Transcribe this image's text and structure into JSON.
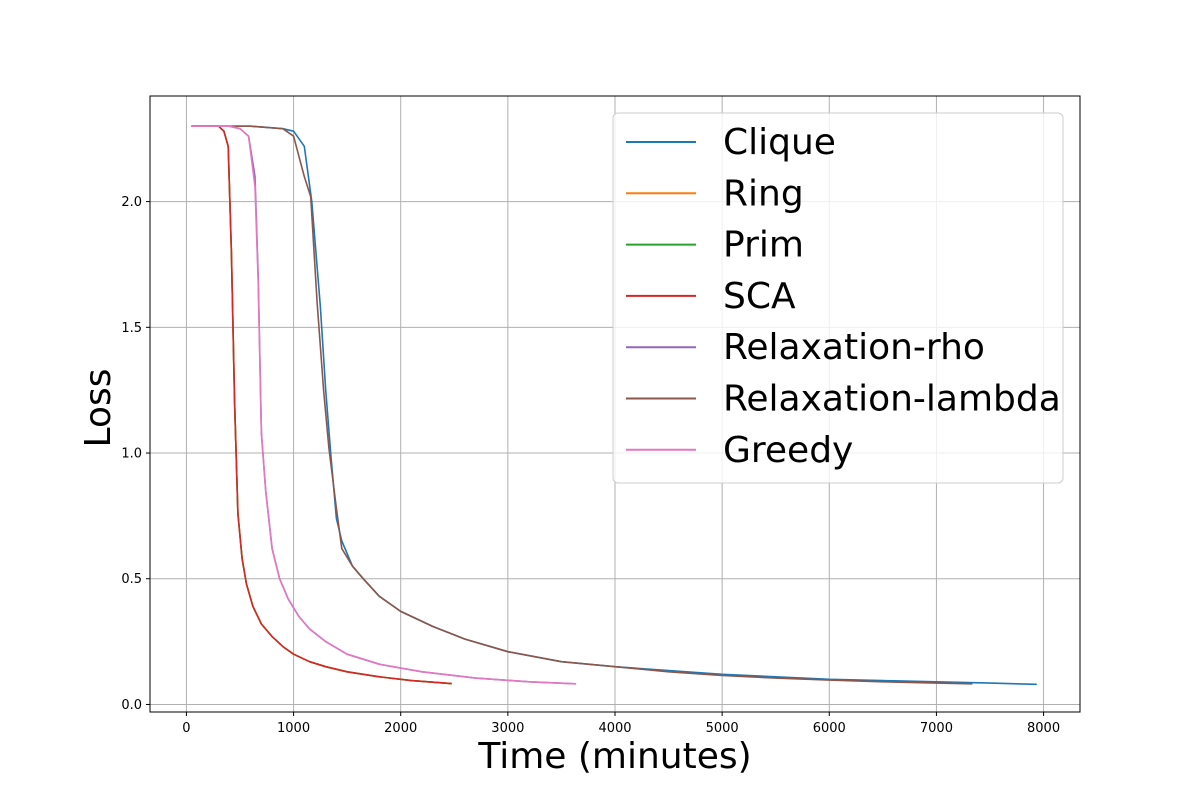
{
  "chart_data": {
    "type": "line",
    "title": "",
    "xlabel": "Time (minutes)",
    "ylabel": "Loss",
    "xlim": [
      -340,
      8340
    ],
    "ylim": [
      -0.03,
      2.42
    ],
    "xticks": [
      0,
      1000,
      2000,
      3000,
      4000,
      5000,
      6000,
      7000,
      8000
    ],
    "yticks": [
      0.0,
      0.5,
      1.0,
      1.5,
      2.0
    ],
    "xtick_labels": [
      "0",
      "1000",
      "2000",
      "3000",
      "4000",
      "5000",
      "6000",
      "7000",
      "8000"
    ],
    "ytick_labels": [
      "0.0",
      "0.5",
      "1.0",
      "1.5",
      "2.0"
    ],
    "grid": true,
    "legend_position": "top-right",
    "series": [
      {
        "name": "Clique",
        "color": "#1f77b4",
        "x": [
          50,
          300,
          600,
          900,
          1000,
          1100,
          1170,
          1250,
          1300,
          1350,
          1400,
          1450,
          1550,
          1650,
          1800,
          2000,
          2300,
          2600,
          3000,
          3500,
          4000,
          4500,
          5000,
          5500,
          6000,
          6500,
          7000,
          7500,
          7930
        ],
        "y": [
          2.3,
          2.3,
          2.3,
          2.29,
          2.28,
          2.22,
          2.0,
          1.58,
          1.25,
          0.98,
          0.74,
          0.65,
          0.55,
          0.5,
          0.43,
          0.37,
          0.31,
          0.26,
          0.21,
          0.17,
          0.15,
          0.135,
          0.12,
          0.11,
          0.1,
          0.095,
          0.09,
          0.085,
          0.08
        ]
      },
      {
        "name": "Ring",
        "color": "#ff7f0e",
        "x": [
          50,
          300,
          350,
          390,
          420,
          450,
          480,
          520,
          560,
          620,
          700,
          800,
          900,
          1000,
          1150,
          1300,
          1500,
          1800,
          2100,
          2470
        ],
        "y": [
          2.3,
          2.3,
          2.28,
          2.22,
          1.8,
          1.2,
          0.76,
          0.58,
          0.48,
          0.39,
          0.32,
          0.27,
          0.23,
          0.2,
          0.17,
          0.15,
          0.13,
          0.11,
          0.095,
          0.083
        ]
      },
      {
        "name": "Prim",
        "color": "#2ca02c",
        "x": [
          50,
          300,
          350,
          390,
          420,
          450,
          480,
          520,
          560,
          620,
          700,
          800,
          900,
          1000,
          1150,
          1300,
          1500,
          1800,
          2100,
          2470
        ],
        "y": [
          2.3,
          2.3,
          2.28,
          2.22,
          1.8,
          1.2,
          0.76,
          0.58,
          0.48,
          0.39,
          0.32,
          0.27,
          0.23,
          0.2,
          0.17,
          0.15,
          0.13,
          0.11,
          0.095,
          0.083
        ]
      },
      {
        "name": "SCA",
        "color": "#d62728",
        "x": [
          50,
          300,
          350,
          390,
          420,
          450,
          480,
          520,
          560,
          620,
          700,
          800,
          900,
          1000,
          1150,
          1300,
          1500,
          1800,
          2100,
          2470
        ],
        "y": [
          2.3,
          2.3,
          2.28,
          2.22,
          1.8,
          1.2,
          0.76,
          0.58,
          0.48,
          0.39,
          0.32,
          0.27,
          0.23,
          0.2,
          0.17,
          0.15,
          0.13,
          0.11,
          0.095,
          0.083
        ]
      },
      {
        "name": "Relaxation-rho",
        "color": "#9467bd",
        "x": [
          50,
          400,
          500,
          580,
          640,
          670,
          700,
          740,
          800,
          870,
          950,
          1050,
          1150,
          1300,
          1500,
          1800,
          2200,
          2700,
          3200,
          3630
        ],
        "y": [
          2.3,
          2.3,
          2.29,
          2.26,
          2.1,
          1.7,
          1.08,
          0.85,
          0.62,
          0.5,
          0.42,
          0.35,
          0.3,
          0.25,
          0.2,
          0.16,
          0.13,
          0.105,
          0.09,
          0.082
        ]
      },
      {
        "name": "Relaxation-lambda",
        "color": "#8c564b",
        "x": [
          50,
          300,
          600,
          900,
          1000,
          1050,
          1100,
          1160,
          1220,
          1280,
          1330,
          1400,
          1450,
          1550,
          1650,
          1800,
          2000,
          2300,
          2600,
          3000,
          3500,
          4000,
          4500,
          5000,
          5500,
          6000,
          6500,
          7000,
          7330
        ],
        "y": [
          2.3,
          2.3,
          2.3,
          2.29,
          2.26,
          2.18,
          2.1,
          2.02,
          1.6,
          1.25,
          1.02,
          0.78,
          0.62,
          0.55,
          0.5,
          0.43,
          0.37,
          0.31,
          0.26,
          0.21,
          0.17,
          0.15,
          0.13,
          0.115,
          0.105,
          0.097,
          0.09,
          0.085,
          0.082
        ]
      },
      {
        "name": "Greedy",
        "color": "#e377c2",
        "x": [
          50,
          400,
          500,
          580,
          640,
          670,
          700,
          740,
          800,
          870,
          950,
          1050,
          1150,
          1300,
          1500,
          1800,
          2200,
          2700,
          3200,
          3630
        ],
        "y": [
          2.3,
          2.3,
          2.29,
          2.26,
          2.06,
          1.68,
          1.08,
          0.85,
          0.62,
          0.5,
          0.42,
          0.35,
          0.3,
          0.25,
          0.2,
          0.16,
          0.13,
          0.105,
          0.09,
          0.082
        ]
      }
    ]
  }
}
